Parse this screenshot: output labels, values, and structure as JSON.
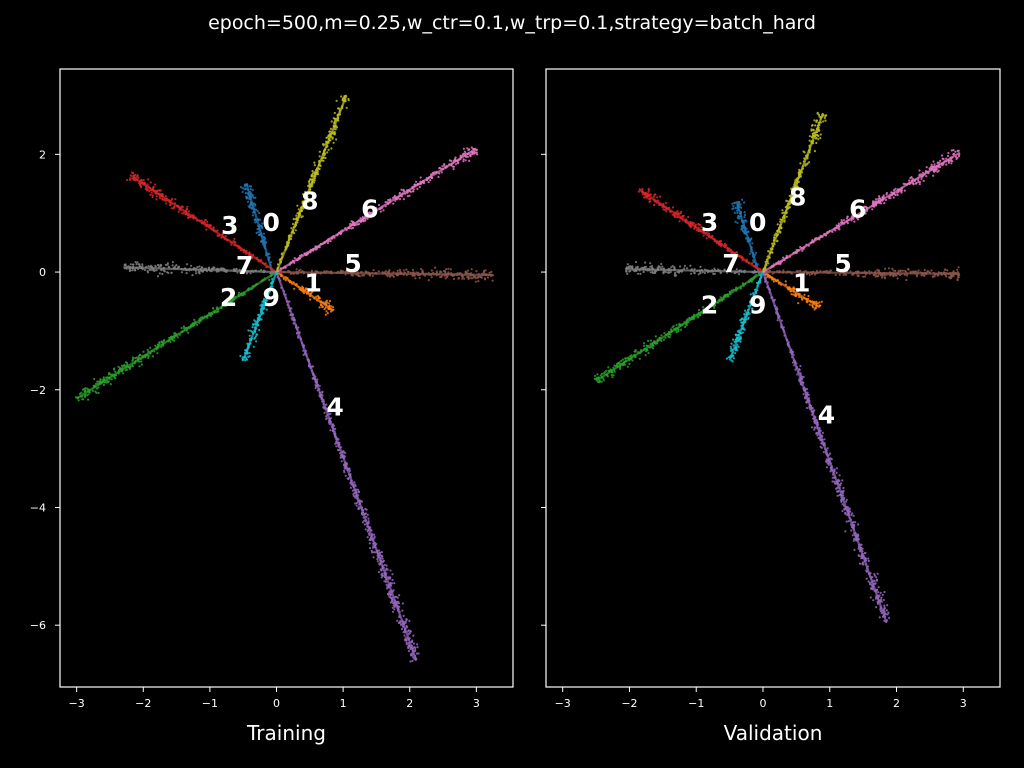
{
  "suptitle": "epoch=500,m=0.25,w_ctr=0.1,w_trp=0.1,strategy=batch_hard",
  "colors": {
    "0": "#1f77b4",
    "1": "#ff7f0e",
    "2": "#2ca02c",
    "3": "#d62728",
    "4": "#9467bd",
    "5": "#8c564b",
    "6": "#e377c2",
    "7": "#7f7f7f",
    "8": "#bcbd22",
    "9": "#17becf"
  },
  "chart_data": [
    {
      "type": "scatter",
      "title": "",
      "xlabel": "Training",
      "ylabel": "",
      "xlim": [
        -3.25,
        3.55
      ],
      "ylim": [
        -7.05,
        3.45
      ],
      "xticks": [
        -3,
        -2,
        -1,
        0,
        1,
        2,
        3
      ],
      "xtick_labels": [
        "−3",
        "−2",
        "−1",
        "0",
        "1",
        "2",
        "3"
      ],
      "yticks": [
        2,
        0,
        -2,
        -4,
        -6
      ],
      "ytick_labels": [
        "2",
        "0",
        "−2",
        "−4",
        "−6"
      ],
      "grid": false,
      "series": [
        {
          "cls": "0",
          "x": [
            -0.05,
            -0.45
          ],
          "y": [
            -0.05,
            1.5
          ]
        },
        {
          "cls": "1",
          "x": [
            0.0,
            0.85
          ],
          "y": [
            0.0,
            -0.65
          ]
        },
        {
          "cls": "2",
          "x": [
            0.0,
            -3.0
          ],
          "y": [
            0.0,
            -2.15
          ]
        },
        {
          "cls": "3",
          "x": [
            0.0,
            -2.2
          ],
          "y": [
            0.0,
            1.65
          ]
        },
        {
          "cls": "4",
          "x": [
            0.0,
            2.1
          ],
          "y": [
            0.0,
            -6.6
          ]
        },
        {
          "cls": "5",
          "x": [
            0.0,
            3.25
          ],
          "y": [
            0.0,
            -0.05
          ]
        },
        {
          "cls": "6",
          "x": [
            0.0,
            3.0
          ],
          "y": [
            0.0,
            2.1
          ]
        },
        {
          "cls": "7",
          "x": [
            0.0,
            -2.3
          ],
          "y": [
            0.0,
            0.08
          ]
        },
        {
          "cls": "8",
          "x": [
            0.0,
            1.05
          ],
          "y": [
            0.0,
            3.0
          ]
        },
        {
          "cls": "9",
          "x": [
            0.0,
            -0.5
          ],
          "y": [
            0.0,
            -1.5
          ]
        }
      ],
      "annotations": [
        {
          "text": "0",
          "x": -0.08,
          "y": 0.85
        },
        {
          "text": "1",
          "x": 0.55,
          "y": -0.18
        },
        {
          "text": "2",
          "x": -0.72,
          "y": -0.42
        },
        {
          "text": "3",
          "x": -0.7,
          "y": 0.8
        },
        {
          "text": "4",
          "x": 0.88,
          "y": -2.28
        },
        {
          "text": "5",
          "x": 1.15,
          "y": 0.15
        },
        {
          "text": "6",
          "x": 1.4,
          "y": 1.08
        },
        {
          "text": "7",
          "x": -0.48,
          "y": 0.12
        },
        {
          "text": "8",
          "x": 0.5,
          "y": 1.22
        },
        {
          "text": "9",
          "x": -0.08,
          "y": -0.42
        }
      ]
    },
    {
      "type": "scatter",
      "title": "",
      "xlabel": "Validation",
      "ylabel": "",
      "xlim": [
        -3.25,
        3.55
      ],
      "ylim": [
        -7.05,
        3.45
      ],
      "xticks": [
        -3,
        -2,
        -1,
        0,
        1,
        2,
        3
      ],
      "xtick_labels": [
        "−3",
        "−2",
        "−1",
        "0",
        "1",
        "2",
        "3"
      ],
      "yticks": [
        2,
        0,
        -2,
        -4,
        -6
      ],
      "ytick_labels": [
        "",
        "",
        "",
        "",
        ""
      ],
      "grid": false,
      "series": [
        {
          "cls": "0",
          "x": [
            -0.05,
            -0.4
          ],
          "y": [
            -0.05,
            1.2
          ]
        },
        {
          "cls": "1",
          "x": [
            0.0,
            0.85
          ],
          "y": [
            0.0,
            -0.6
          ]
        },
        {
          "cls": "2",
          "x": [
            0.0,
            -2.5
          ],
          "y": [
            0.0,
            -1.85
          ]
        },
        {
          "cls": "3",
          "x": [
            0.0,
            -1.85
          ],
          "y": [
            0.0,
            1.4
          ]
        },
        {
          "cls": "4",
          "x": [
            0.0,
            1.85
          ],
          "y": [
            0.0,
            -5.95
          ]
        },
        {
          "cls": "5",
          "x": [
            0.0,
            2.95
          ],
          "y": [
            0.0,
            -0.03
          ]
        },
        {
          "cls": "6",
          "x": [
            0.0,
            2.95
          ],
          "y": [
            0.0,
            2.03
          ]
        },
        {
          "cls": "7",
          "x": [
            0.0,
            -2.05
          ],
          "y": [
            0.0,
            0.05
          ]
        },
        {
          "cls": "8",
          "x": [
            0.0,
            0.9
          ],
          "y": [
            0.0,
            2.7
          ]
        },
        {
          "cls": "9",
          "x": [
            0.0,
            -0.5
          ],
          "y": [
            0.0,
            -1.5
          ]
        }
      ],
      "annotations": [
        {
          "text": "0",
          "x": -0.08,
          "y": 0.85
        },
        {
          "text": "1",
          "x": 0.58,
          "y": -0.18
        },
        {
          "text": "2",
          "x": -0.8,
          "y": -0.55
        },
        {
          "text": "3",
          "x": -0.8,
          "y": 0.85
        },
        {
          "text": "4",
          "x": 0.95,
          "y": -2.42
        },
        {
          "text": "5",
          "x": 1.2,
          "y": 0.15
        },
        {
          "text": "6",
          "x": 1.42,
          "y": 1.08
        },
        {
          "text": "7",
          "x": -0.48,
          "y": 0.15
        },
        {
          "text": "8",
          "x": 0.52,
          "y": 1.28
        },
        {
          "text": "9",
          "x": -0.08,
          "y": -0.55
        }
      ]
    }
  ]
}
